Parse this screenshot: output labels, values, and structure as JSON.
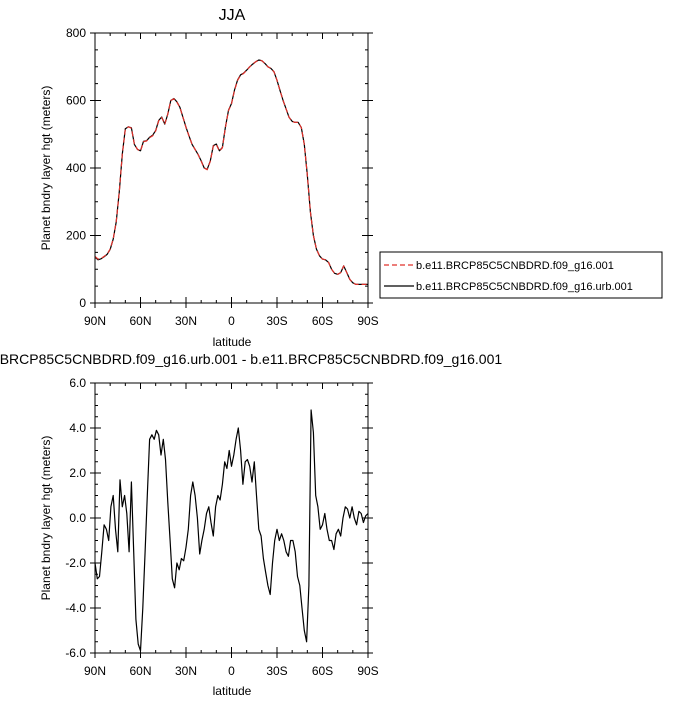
{
  "chart_data": [
    {
      "type": "line",
      "title": "JJA",
      "xlabel": "latitude",
      "ylabel": "Planet bndry layer hgt (meters)",
      "xlim": [
        90,
        -90
      ],
      "ylim": [
        0,
        800
      ],
      "x_tick_values": [
        90,
        60,
        30,
        0,
        -30,
        -60,
        -90
      ],
      "x_tick_labels": [
        "90N",
        "60N",
        "30N",
        "0",
        "30S",
        "60S",
        "90S"
      ],
      "y_tick_values": [
        0,
        200,
        400,
        600,
        800
      ],
      "y_tick_labels": [
        "0",
        "200",
        "400",
        "600",
        "800"
      ],
      "legend_position": "right",
      "series": [
        {
          "name": "b.e11.BRCP85C5CNBDRD.f09_g16.001",
          "color": "#e0302a",
          "dash": "dashed",
          "x": [
            90,
            88,
            86,
            84,
            82,
            80,
            78,
            76,
            74,
            72,
            70,
            68,
            66,
            64,
            62,
            60,
            58,
            56,
            54,
            52,
            50,
            48,
            46,
            44,
            42,
            40,
            38,
            36,
            34,
            32,
            30,
            28,
            26,
            24,
            22,
            20,
            18,
            16,
            14,
            12,
            10,
            8,
            6,
            4,
            2,
            0,
            -2,
            -4,
            -6,
            -8,
            -10,
            -12,
            -14,
            -16,
            -18,
            -20,
            -22,
            -24,
            -26,
            -28,
            -30,
            -32,
            -34,
            -36,
            -38,
            -40,
            -42,
            -44,
            -46,
            -48,
            -50,
            -52,
            -54,
            -56,
            -58,
            -60,
            -62,
            -64,
            -66,
            -68,
            -70,
            -72,
            -74,
            -76,
            -78,
            -80,
            -82,
            -84,
            -86,
            -88,
            -90
          ],
          "y": [
            138,
            130,
            132,
            138,
            145,
            160,
            190,
            240,
            330,
            440,
            515,
            522,
            518,
            470,
            455,
            450,
            478,
            480,
            490,
            495,
            510,
            540,
            550,
            530,
            560,
            600,
            605,
            595,
            580,
            550,
            520,
            495,
            470,
            455,
            440,
            420,
            400,
            395,
            420,
            465,
            470,
            450,
            460,
            520,
            570,
            590,
            630,
            660,
            675,
            680,
            690,
            700,
            708,
            715,
            720,
            718,
            710,
            700,
            695,
            685,
            660,
            630,
            600,
            575,
            550,
            538,
            535,
            535,
            520,
            470,
            380,
            270,
            200,
            160,
            140,
            130,
            128,
            120,
            100,
            88,
            85,
            90,
            110,
            90,
            70,
            60,
            55,
            55,
            55,
            55,
            55
          ]
        },
        {
          "name": "b.e11.BRCP85C5CNBDRD.f09_g16.urb.001",
          "color": "#000000",
          "dash": "solid",
          "x": [
            90,
            88,
            86,
            84,
            82,
            80,
            78,
            76,
            74,
            72,
            70,
            68,
            66,
            64,
            62,
            60,
            58,
            56,
            54,
            52,
            50,
            48,
            46,
            44,
            42,
            40,
            38,
            36,
            34,
            32,
            30,
            28,
            26,
            24,
            22,
            20,
            18,
            16,
            14,
            12,
            10,
            8,
            6,
            4,
            2,
            0,
            -2,
            -4,
            -6,
            -8,
            -10,
            -12,
            -14,
            -16,
            -18,
            -20,
            -22,
            -24,
            -26,
            -28,
            -30,
            -32,
            -34,
            -36,
            -38,
            -40,
            -42,
            -44,
            -46,
            -48,
            -50,
            -52,
            -54,
            -56,
            -58,
            -60,
            -62,
            -64,
            -66,
            -68,
            -70,
            -72,
            -74,
            -76,
            -78,
            -80,
            -82,
            -84,
            -86,
            -88,
            -90
          ],
          "y": [
            136,
            128,
            131,
            137,
            144,
            159,
            189,
            240,
            330,
            441,
            516,
            522,
            519,
            470,
            455,
            451,
            479,
            481,
            491,
            497,
            511,
            541,
            551,
            530,
            560,
            600,
            606,
            596,
            580,
            550,
            521,
            495,
            470,
            455,
            440,
            421,
            400,
            396,
            421,
            466,
            471,
            451,
            461,
            521,
            571,
            591,
            631,
            661,
            676,
            681,
            690,
            700,
            708,
            715,
            720,
            718,
            710,
            700,
            695,
            685,
            660,
            630,
            600,
            575,
            550,
            538,
            535,
            535,
            520,
            470,
            380,
            270,
            200,
            160,
            140,
            130,
            128,
            120,
            100,
            88,
            85,
            90,
            110,
            90,
            70,
            60,
            55,
            55,
            55,
            55,
            55
          ]
        }
      ]
    },
    {
      "type": "line",
      "title": "b.e11.BRCP85C5CNBDRD.f09_g16.urb.001 - b.e11.BRCP85C5CNBDRD.f09_g16.001",
      "xlabel": "latitude",
      "ylabel": "Planet bndry layer hgt (meters)",
      "xlim": [
        90,
        -90
      ],
      "ylim": [
        -6,
        6
      ],
      "x_tick_values": [
        90,
        60,
        30,
        0,
        -30,
        -60,
        -90
      ],
      "x_tick_labels": [
        "90N",
        "60N",
        "30N",
        "0",
        "30S",
        "60S",
        "90S"
      ],
      "y_tick_values": [
        -6,
        -4,
        -2,
        0,
        2,
        4,
        6
      ],
      "y_tick_labels": [
        "-6.0",
        "-4.0",
        "-2.0",
        "0.0",
        "2.0",
        "4.0",
        "6.0"
      ],
      "series": [
        {
          "color": "#000000",
          "dash": "solid",
          "x": [
            90,
            88.5,
            87,
            85.5,
            84,
            82.5,
            81,
            79.5,
            78,
            76.5,
            75,
            73.5,
            72,
            70.5,
            69,
            67.5,
            66,
            64.5,
            63,
            61.5,
            60,
            58.5,
            57,
            55.5,
            54,
            52.5,
            51,
            49.5,
            48,
            46.5,
            45,
            43.5,
            42,
            40.5,
            39,
            37.5,
            36,
            34.5,
            33,
            31.5,
            30,
            28.5,
            27,
            25.5,
            24,
            22.5,
            21,
            19.5,
            18,
            16.5,
            15,
            13.5,
            12,
            10.5,
            9,
            7.5,
            6,
            4.5,
            3,
            1.5,
            0,
            -1.5,
            -3,
            -4.5,
            -6,
            -7.5,
            -9,
            -10.5,
            -12,
            -13.5,
            -15,
            -16.5,
            -18,
            -19.5,
            -21,
            -22.5,
            -24,
            -25.5,
            -27,
            -28.5,
            -30,
            -31.5,
            -33,
            -34.5,
            -36,
            -37.5,
            -39,
            -40.5,
            -42,
            -43.5,
            -45,
            -46.5,
            -48,
            -49.5,
            -51,
            -52.5,
            -54,
            -55.5,
            -57,
            -58.5,
            -60,
            -61.5,
            -63,
            -64.5,
            -66,
            -67.5,
            -69,
            -70.5,
            -72,
            -73.5,
            -75,
            -76.5,
            -78,
            -79.5,
            -81,
            -82.5,
            -84,
            -85.5,
            -87,
            -88.5,
            -90
          ],
          "y": [
            -2.0,
            -2.7,
            -2.6,
            -1.5,
            -0.3,
            -0.5,
            -1.0,
            0.5,
            1.0,
            -0.5,
            -1.5,
            1.7,
            0.5,
            1.0,
            0.2,
            -1.5,
            1.6,
            -1.5,
            -4.5,
            -5.6,
            -5.9,
            -4.0,
            -1.5,
            1.0,
            3.5,
            3.7,
            3.5,
            3.9,
            3.7,
            2.8,
            3.5,
            2.6,
            0.7,
            -1.0,
            -2.7,
            -3.1,
            -2.0,
            -2.3,
            -1.8,
            -1.9,
            -1.3,
            -0.5,
            1.0,
            1.6,
            1.0,
            0.0,
            -1.6,
            -1.0,
            -0.5,
            0.2,
            0.5,
            -0.2,
            -0.8,
            0.5,
            1.0,
            0.8,
            1.5,
            2.5,
            2.2,
            3.0,
            2.3,
            2.8,
            3.5,
            4.0,
            3.0,
            1.5,
            2.5,
            2.6,
            2.3,
            1.6,
            2.5,
            1.0,
            -0.5,
            -0.8,
            -1.8,
            -2.4,
            -3.0,
            -3.4,
            -2.0,
            -1.0,
            -0.5,
            -1.0,
            -0.7,
            -1.0,
            -1.5,
            -1.7,
            -1.0,
            -1.0,
            -1.5,
            -2.6,
            -3.0,
            -4.0,
            -5.0,
            -5.5,
            -3.0,
            4.8,
            3.8,
            1.0,
            0.5,
            -0.5,
            -0.3,
            0.2,
            -0.5,
            -1.0,
            -1.0,
            -1.4,
            -0.7,
            -0.5,
            -0.8,
            0.0,
            0.5,
            0.4,
            0.0,
            0.5,
            0.0,
            -0.3,
            0.3,
            0.2,
            -0.2,
            0.1,
            0.2
          ]
        }
      ]
    }
  ]
}
